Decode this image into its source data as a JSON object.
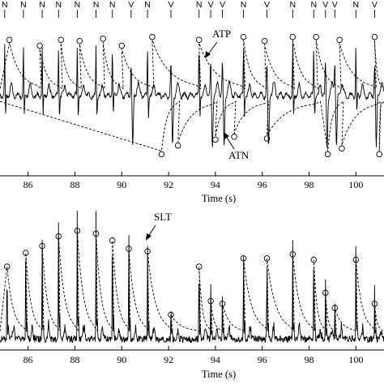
{
  "chart_data": [
    {
      "type": "line",
      "panel": "top",
      "xlabel": "Time (s)",
      "xlim": [
        84.8,
        101.2
      ],
      "x_ticks": [
        86,
        88,
        90,
        92,
        94,
        96,
        98,
        100
      ],
      "beat_labels": [
        {
          "t": 85.0,
          "label": "N"
        },
        {
          "t": 85.8,
          "label": "N"
        },
        {
          "t": 86.6,
          "label": "N"
        },
        {
          "t": 87.3,
          "label": "N"
        },
        {
          "t": 88.1,
          "label": "N"
        },
        {
          "t": 88.9,
          "label": "N"
        },
        {
          "t": 89.6,
          "label": "N"
        },
        {
          "t": 90.4,
          "label": "V"
        },
        {
          "t": 91.1,
          "label": "N"
        },
        {
          "t": 92.1,
          "label": "V"
        },
        {
          "t": 93.3,
          "label": "N"
        },
        {
          "t": 93.8,
          "label": "V"
        },
        {
          "t": 94.3,
          "label": "V"
        },
        {
          "t": 95.2,
          "label": "N"
        },
        {
          "t": 96.2,
          "label": "V"
        },
        {
          "t": 97.3,
          "label": "N"
        },
        {
          "t": 98.2,
          "label": "N"
        },
        {
          "t": 98.7,
          "label": "V"
        },
        {
          "t": 99.1,
          "label": "V"
        },
        {
          "t": 100.0,
          "label": "N"
        },
        {
          "t": 100.8,
          "label": "V"
        }
      ],
      "annotations": [
        {
          "text": "ATP",
          "t": 93.9
        },
        {
          "text": "ATN",
          "t": 94.7
        }
      ],
      "series": [
        {
          "style": "solid",
          "description": "ECG signal"
        },
        {
          "style": "dashed",
          "description": "adaptive threshold",
          "positive_peaks": [
            {
              "x": 85.2,
              "y": 0.9
            },
            {
              "x": 86.5,
              "y": 0.8
            },
            {
              "x": 87.4,
              "y": 0.9
            },
            {
              "x": 88.2,
              "y": 0.88
            },
            {
              "x": 89.2,
              "y": 0.92
            },
            {
              "x": 90.0,
              "y": 0.8
            },
            {
              "x": 91.3,
              "y": 0.95
            },
            {
              "x": 93.3,
              "y": 0.9
            },
            {
              "x": 95.2,
              "y": 0.95
            },
            {
              "x": 96.1,
              "y": 0.88
            },
            {
              "x": 97.3,
              "y": 0.95
            },
            {
              "x": 98.3,
              "y": 0.95
            },
            {
              "x": 99.3,
              "y": 0.9
            },
            {
              "x": 100.8,
              "y": 0.95
            }
          ],
          "negative_peaks": [
            {
              "x": 91.7,
              "y": -0.95
            },
            {
              "x": 92.4,
              "y": -0.8
            },
            {
              "x": 94.0,
              "y": -0.7
            },
            {
              "x": 94.8,
              "y": -0.65
            },
            {
              "x": 96.2,
              "y": -0.68
            },
            {
              "x": 98.8,
              "y": -0.95
            },
            {
              "x": 99.4,
              "y": -0.85
            },
            {
              "x": 101.0,
              "y": -0.95
            }
          ]
        }
      ]
    },
    {
      "type": "line",
      "panel": "bottom",
      "xlabel": "Time (s)",
      "xlim": [
        84.8,
        101.2
      ],
      "x_ticks": [
        86,
        88,
        90,
        92,
        94,
        96,
        98,
        100
      ],
      "annotations": [
        {
          "text": "SLT",
          "t": 91.6
        }
      ],
      "series": [
        {
          "style": "solid",
          "description": "rectified ECG envelope",
          "peaks": [
            {
              "x": 85.1,
              "y": 0.62
            },
            {
              "x": 85.9,
              "y": 0.78
            },
            {
              "x": 86.6,
              "y": 0.83
            },
            {
              "x": 87.3,
              "y": 0.9
            },
            {
              "x": 88.1,
              "y": 0.95
            },
            {
              "x": 88.9,
              "y": 0.93
            },
            {
              "x": 89.6,
              "y": 0.86
            },
            {
              "x": 90.3,
              "y": 0.8
            },
            {
              "x": 91.1,
              "y": 0.78
            },
            {
              "x": 92.1,
              "y": 0.3
            },
            {
              "x": 93.3,
              "y": 0.68
            },
            {
              "x": 93.8,
              "y": 0.4
            },
            {
              "x": 94.3,
              "y": 0.38
            },
            {
              "x": 95.2,
              "y": 0.7
            },
            {
              "x": 96.2,
              "y": 0.72
            },
            {
              "x": 97.3,
              "y": 0.73
            },
            {
              "x": 98.2,
              "y": 0.7
            },
            {
              "x": 98.7,
              "y": 0.45
            },
            {
              "x": 99.1,
              "y": 0.32
            },
            {
              "x": 100.0,
              "y": 0.72
            },
            {
              "x": 100.8,
              "y": 0.4
            }
          ]
        },
        {
          "style": "dashed",
          "description": "slope threshold",
          "marked_peaks": [
            {
              "x": 85.1,
              "y": 0.57
            },
            {
              "x": 85.9,
              "y": 0.67
            },
            {
              "x": 86.6,
              "y": 0.72
            },
            {
              "x": 87.3,
              "y": 0.79
            },
            {
              "x": 88.1,
              "y": 0.83
            },
            {
              "x": 88.9,
              "y": 0.81
            },
            {
              "x": 89.6,
              "y": 0.76
            },
            {
              "x": 90.3,
              "y": 0.7
            },
            {
              "x": 91.1,
              "y": 0.68
            },
            {
              "x": 92.1,
              "y": 0.22
            },
            {
              "x": 93.3,
              "y": 0.57
            },
            {
              "x": 93.8,
              "y": 0.32
            },
            {
              "x": 94.3,
              "y": 0.3
            },
            {
              "x": 95.2,
              "y": 0.63
            },
            {
              "x": 96.2,
              "y": 0.63
            },
            {
              "x": 97.3,
              "y": 0.66
            },
            {
              "x": 98.2,
              "y": 0.62
            },
            {
              "x": 98.7,
              "y": 0.38
            },
            {
              "x": 99.1,
              "y": 0.27
            },
            {
              "x": 100.0,
              "y": 0.62
            },
            {
              "x": 100.8,
              "y": 0.3
            }
          ]
        }
      ]
    }
  ]
}
